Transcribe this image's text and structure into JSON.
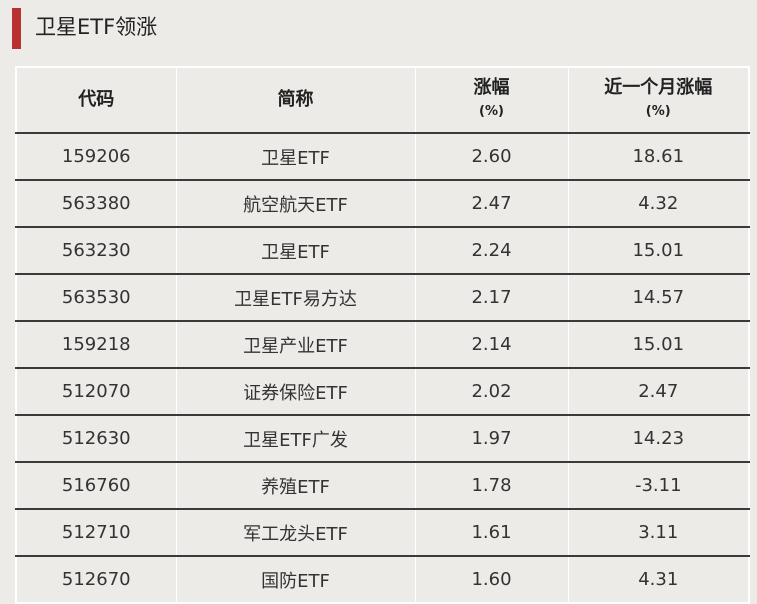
{
  "title": "卫星ETF领涨",
  "accent_color": "#b8302f",
  "table": {
    "headers": [
      {
        "label": "代码",
        "unit": ""
      },
      {
        "label": "简称",
        "unit": ""
      },
      {
        "label": "涨幅",
        "unit": "(%)"
      },
      {
        "label": "近一个月涨幅",
        "unit": "(%)"
      }
    ],
    "rows": [
      [
        "159206",
        "卫星ETF",
        "2.60",
        "18.61"
      ],
      [
        "563380",
        "航空航天ETF",
        "2.47",
        "4.32"
      ],
      [
        "563230",
        "卫星ETF",
        "2.24",
        "15.01"
      ],
      [
        "563530",
        "卫星ETF易方达",
        "2.17",
        "14.57"
      ],
      [
        "159218",
        "卫星产业ETF",
        "2.14",
        "15.01"
      ],
      [
        "512070",
        "证券保险ETF",
        "2.02",
        "2.47"
      ],
      [
        "512630",
        "卫星ETF广发",
        "1.97",
        "14.23"
      ],
      [
        "516760",
        "养殖ETF",
        "1.78",
        "-3.11"
      ],
      [
        "512710",
        "军工龙头ETF",
        "1.61",
        "3.11"
      ],
      [
        "512670",
        "国防ETF",
        "1.60",
        "4.31"
      ]
    ]
  }
}
